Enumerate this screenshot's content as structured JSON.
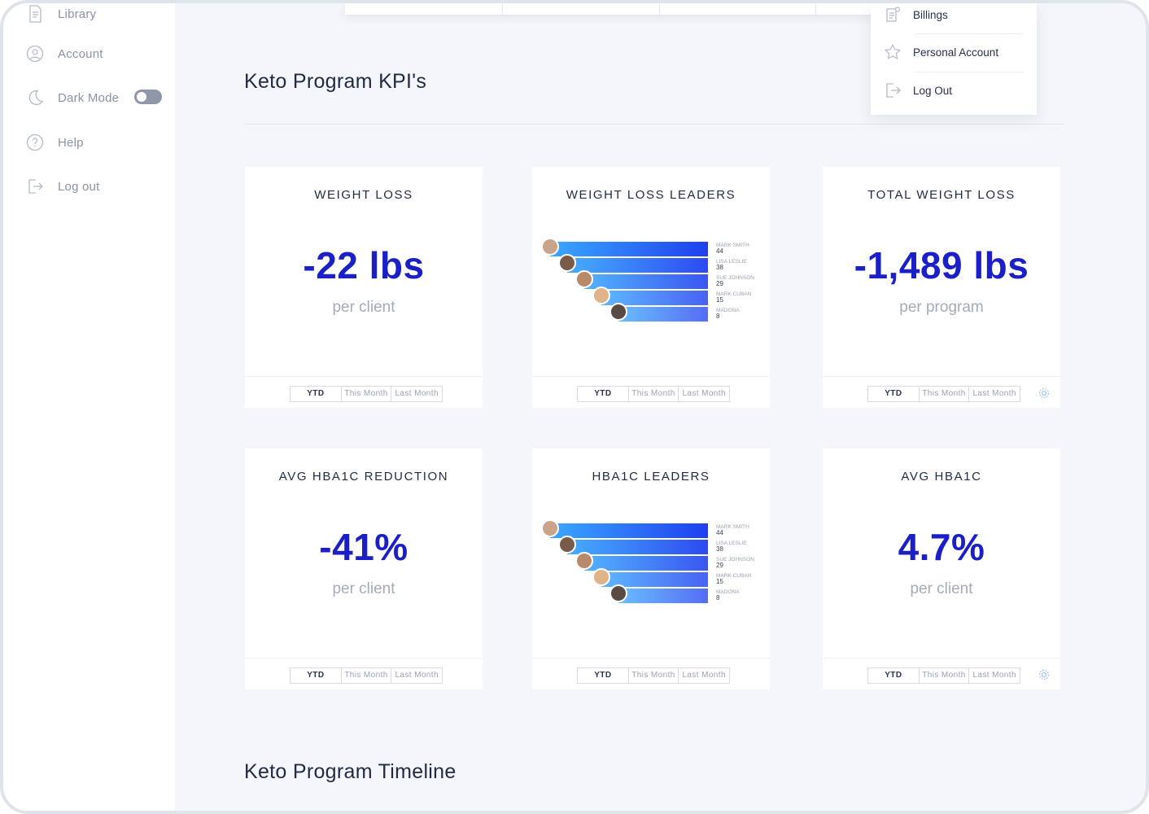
{
  "sidebar": {
    "items": [
      {
        "label": "Library",
        "icon": "document-icon"
      },
      {
        "label": "Account",
        "icon": "user-circle-icon"
      },
      {
        "label": "Dark Mode",
        "icon": "moon-icon"
      },
      {
        "label": "Help",
        "icon": "help-circle-icon"
      },
      {
        "label": "Log out",
        "icon": "logout-icon"
      }
    ],
    "dark_mode_on": false
  },
  "dropdown": {
    "items": [
      {
        "label": "Billings",
        "icon": "billing-icon"
      },
      {
        "label": "Personal Account",
        "icon": "star-icon"
      },
      {
        "label": "Log Out",
        "icon": "logout-icon"
      }
    ]
  },
  "main": {
    "kpi_title": "Keto Program KPI's",
    "timeline_title": "Keto Program Timeline"
  },
  "range_options": [
    "YTD",
    "This Month",
    "Last Month"
  ],
  "cards": [
    {
      "title": "WEIGHT LOSS",
      "value": "-22 lbs",
      "caption": "per client"
    },
    {
      "title": "WEIGHT LOSS LEADERS"
    },
    {
      "title": "TOTAL WEIGHT LOSS",
      "value": "-1,489 lbs",
      "caption": "per program"
    },
    {
      "title": "AVG HBA1C REDUCTION",
      "value": "-41%",
      "caption": "per client"
    },
    {
      "title": "HBA1C LEADERS"
    },
    {
      "title": "AVG HBA1C",
      "value": "4.7%",
      "caption": "per client"
    }
  ],
  "leaders": [
    {
      "name": "MARK SMITH",
      "value": "44"
    },
    {
      "name": "LISA LESLIE",
      "value": "38"
    },
    {
      "name": "SUE JOHNSON",
      "value": "29"
    },
    {
      "name": "MARK CUBAN",
      "value": "15"
    },
    {
      "name": "MADONA",
      "value": "8"
    }
  ],
  "colors": {
    "accent": "#1b1fc8",
    "bar_start": "#3aa8ff",
    "bar_end": "#1f3ff0"
  }
}
